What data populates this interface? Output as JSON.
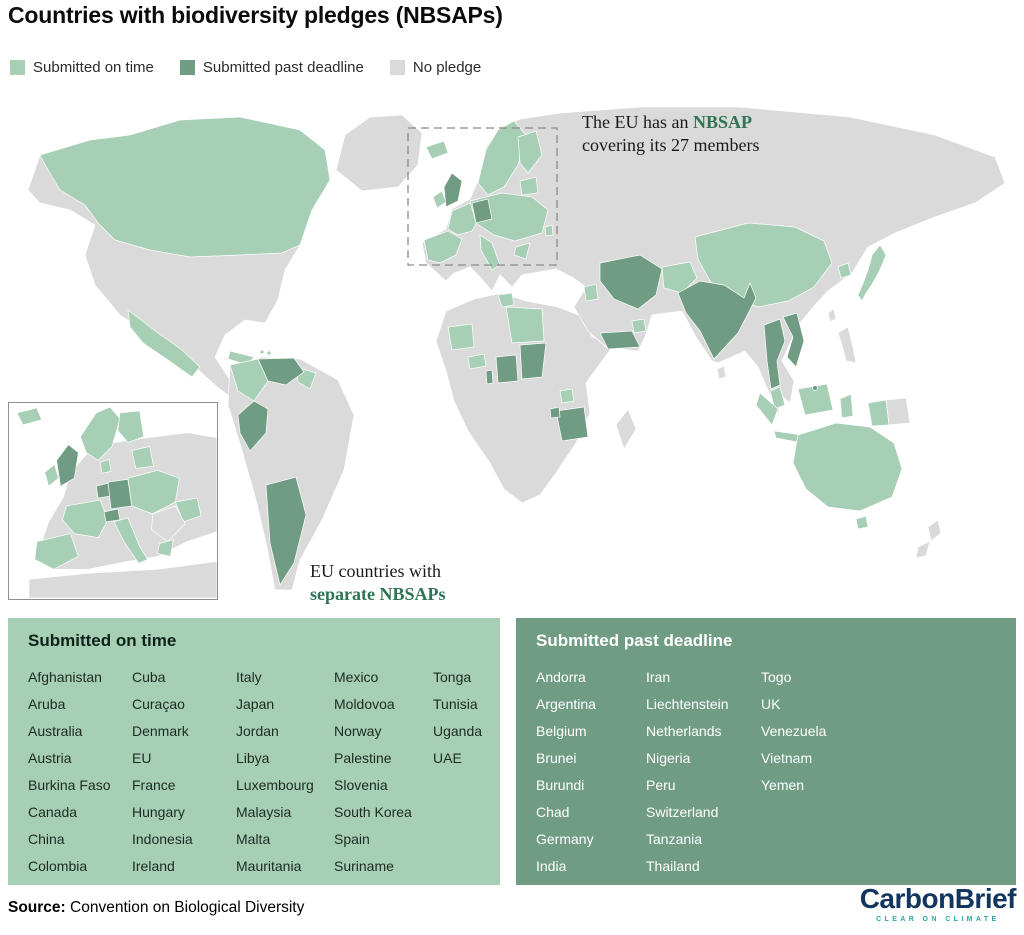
{
  "title": "Countries with biodiversity pledges (NBSAPs)",
  "colors": {
    "light": "#a6cfb5",
    "dark": "#6f9c83",
    "gray": "#dadada",
    "accent": "#2f7354",
    "navy": "#12365e",
    "teal": "#2aa6a1"
  },
  "legend": {
    "items": [
      {
        "label": "Submitted on time",
        "color": "#a6cfb5"
      },
      {
        "label": "Submitted past deadline",
        "color": "#6f9c83"
      },
      {
        "label": "No pledge",
        "color": "#dadada"
      }
    ]
  },
  "map": {
    "eu_annotation": {
      "pre": "The EU has an ",
      "highlight": "NBSAP",
      "line2": "covering its 27 members"
    },
    "inset_caption": {
      "line1": "EU countries with",
      "line2": "separate NBSAPs"
    }
  },
  "panels": {
    "on_time": {
      "title": "Submitted on time",
      "columns": [
        [
          "Afghanistan",
          "Aruba",
          "Australia",
          "Austria",
          "Burkina Faso",
          "Canada",
          "China",
          "Colombia"
        ],
        [
          "Cuba",
          "Curaçao",
          "Denmark",
          "EU",
          "France",
          "Hungary",
          "Indonesia",
          "Ireland"
        ],
        [
          "Italy",
          "Japan",
          "Jordan",
          "Libya",
          "Luxembourg",
          "Malaysia",
          "Malta",
          "Mauritania"
        ],
        [
          "Mexico",
          "Moldovoa",
          "Norway",
          "Palestine",
          "Slovenia",
          "South Korea",
          "Spain",
          "Suriname"
        ],
        [
          "Tonga",
          "Tunisia",
          "Uganda",
          "UAE"
        ]
      ]
    },
    "past_deadline": {
      "title": "Submitted past deadline",
      "columns": [
        [
          "Andorra",
          "Argentina",
          "Belgium",
          "Brunei",
          "Burundi",
          "Chad",
          "Germany",
          "India"
        ],
        [
          "Iran",
          "Liechtenstein",
          "Netherlands",
          "Nigeria",
          "Peru",
          "Switzerland",
          "Tanzania",
          "Thailand"
        ],
        [
          "Togo",
          "UK",
          "Venezuela",
          "Vietnam",
          "Yemen"
        ]
      ]
    }
  },
  "footer": {
    "source_label": "Source:",
    "source_text": " Convention on Biological Diversity"
  },
  "logo": {
    "part1": "Carbon",
    "part2": "Brief",
    "tagline": "CLEAR ON CLIMATE"
  }
}
